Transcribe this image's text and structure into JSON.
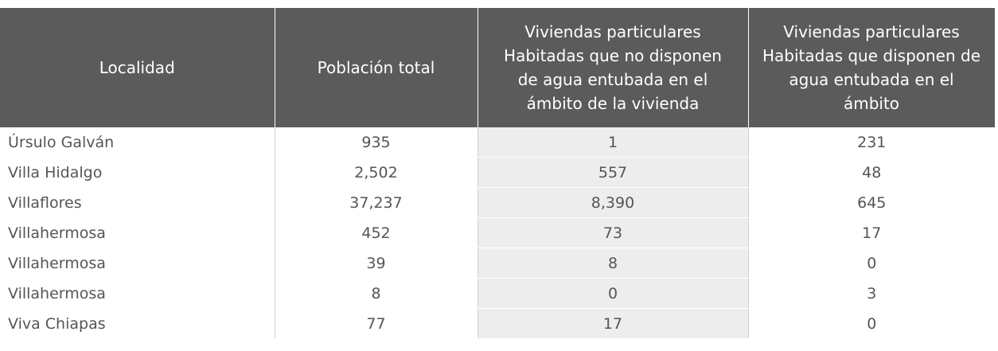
{
  "table": {
    "header": [
      [
        "Localidad"
      ],
      [
        "Población total"
      ],
      [
        "Viviendas particulares",
        "Habitadas que no disponen",
        "de  agua entubada en el",
        "ámbito  de la vivienda"
      ],
      [
        "Viviendas particulares",
        "Habitadas que  disponen de",
        "agua  entubada en  el",
        "ámbito"
      ]
    ],
    "rows": [
      [
        "Úrsulo Galván",
        "935",
        "1",
        "231"
      ],
      [
        "Villa Hidalgo",
        "2,502",
        "557",
        "48"
      ],
      [
        "Villaflores",
        "37,237",
        "8,390",
        "645"
      ],
      [
        "Villahermosa",
        "452",
        "73",
        "17"
      ],
      [
        "Villahermosa",
        "39",
        "8",
        "0"
      ],
      [
        "Villahermosa",
        "8",
        "0",
        "3"
      ],
      [
        "Viva Chiapas",
        "77",
        "17",
        "0"
      ]
    ]
  }
}
